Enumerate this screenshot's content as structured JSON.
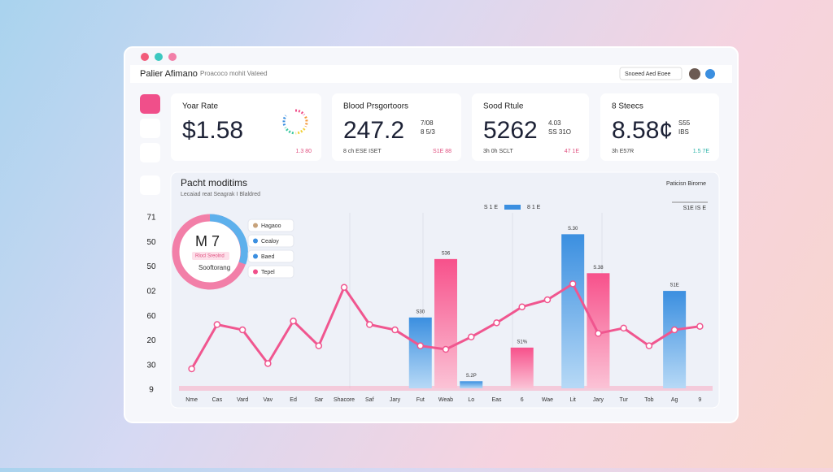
{
  "header": {
    "title": "Palier Afimano",
    "subtitle": "Proacoco mohit Vateed",
    "dropdown": "Snoeed Aed Eoee"
  },
  "cards": [
    {
      "label": "Yoar Rate",
      "value": "$1.58",
      "side": [],
      "foot": "",
      "foot_right": "1.3 80"
    },
    {
      "label": "Blood Prsgortoors",
      "value": "247.2",
      "side": [
        "7/08",
        "8 5/3"
      ],
      "foot": "8 ch ESE ISET",
      "foot_right": "S1E 88"
    },
    {
      "label": "Sood Rtule",
      "value": "5262",
      "side": [
        "4.03",
        "SS 31O"
      ],
      "foot": "3h 0h SCLT",
      "foot_right": "47 1E"
    },
    {
      "label": "8 Steecs",
      "value": "8.58¢",
      "side": [
        "S55",
        "IBS"
      ],
      "foot": "3h E57R",
      "foot_right": "1.5 7E"
    }
  ],
  "panel": {
    "title": "Pacht moditims",
    "subtitle": "Lecaiad reat Seagrak I Blaldred",
    "right_title": "Paticisn Birorne",
    "legend": [
      "S 1 E",
      "8 1 E"
    ],
    "legend_right": "S1E IS E",
    "donut": {
      "value": "M 7",
      "tag": "Rlocl Sreolnd",
      "label": "Sooftorang",
      "items": [
        "Hagaoo",
        "Cealoy",
        "Baed",
        "Tepel"
      ]
    }
  },
  "chart": {
    "type": "bar_line",
    "y_labels": [
      "71",
      "50",
      "50",
      "02",
      "60",
      "20",
      "30",
      "9"
    ],
    "categories": [
      "Nme",
      "Cas",
      "Vard",
      "Vav",
      "Ed",
      "Sar",
      "Shacore",
      "Saf",
      "Jary",
      "Fut",
      "Weab",
      "Lo",
      "Eas",
      "6",
      "Wae",
      "Lit",
      "Jary",
      "Tur",
      "Tob",
      "Ag",
      "9"
    ],
    "ylim": [
      0,
      100
    ],
    "series": [
      {
        "name": "bars",
        "kind": "bar",
        "colors": [
          "#3b8fe0",
          "#f04f8a"
        ],
        "values": [
          null,
          null,
          null,
          null,
          null,
          null,
          null,
          null,
          null,
          40,
          73,
          4,
          null,
          23,
          null,
          87,
          65,
          null,
          null,
          55,
          null
        ]
      },
      {
        "name": "line",
        "kind": "line",
        "color": "#f0568f",
        "values": [
          11,
          36,
          33,
          14,
          38,
          24,
          57,
          36,
          33,
          24,
          22,
          29,
          37,
          46,
          50,
          59,
          31,
          34,
          24,
          33,
          35
        ]
      }
    ],
    "bar_labels": [
      null,
      null,
      null,
      null,
      null,
      null,
      null,
      null,
      null,
      "S30",
      "S36",
      "S.2P",
      null,
      "S1%",
      null,
      "S.30",
      "S.38",
      null,
      null,
      "S1E",
      null
    ]
  }
}
